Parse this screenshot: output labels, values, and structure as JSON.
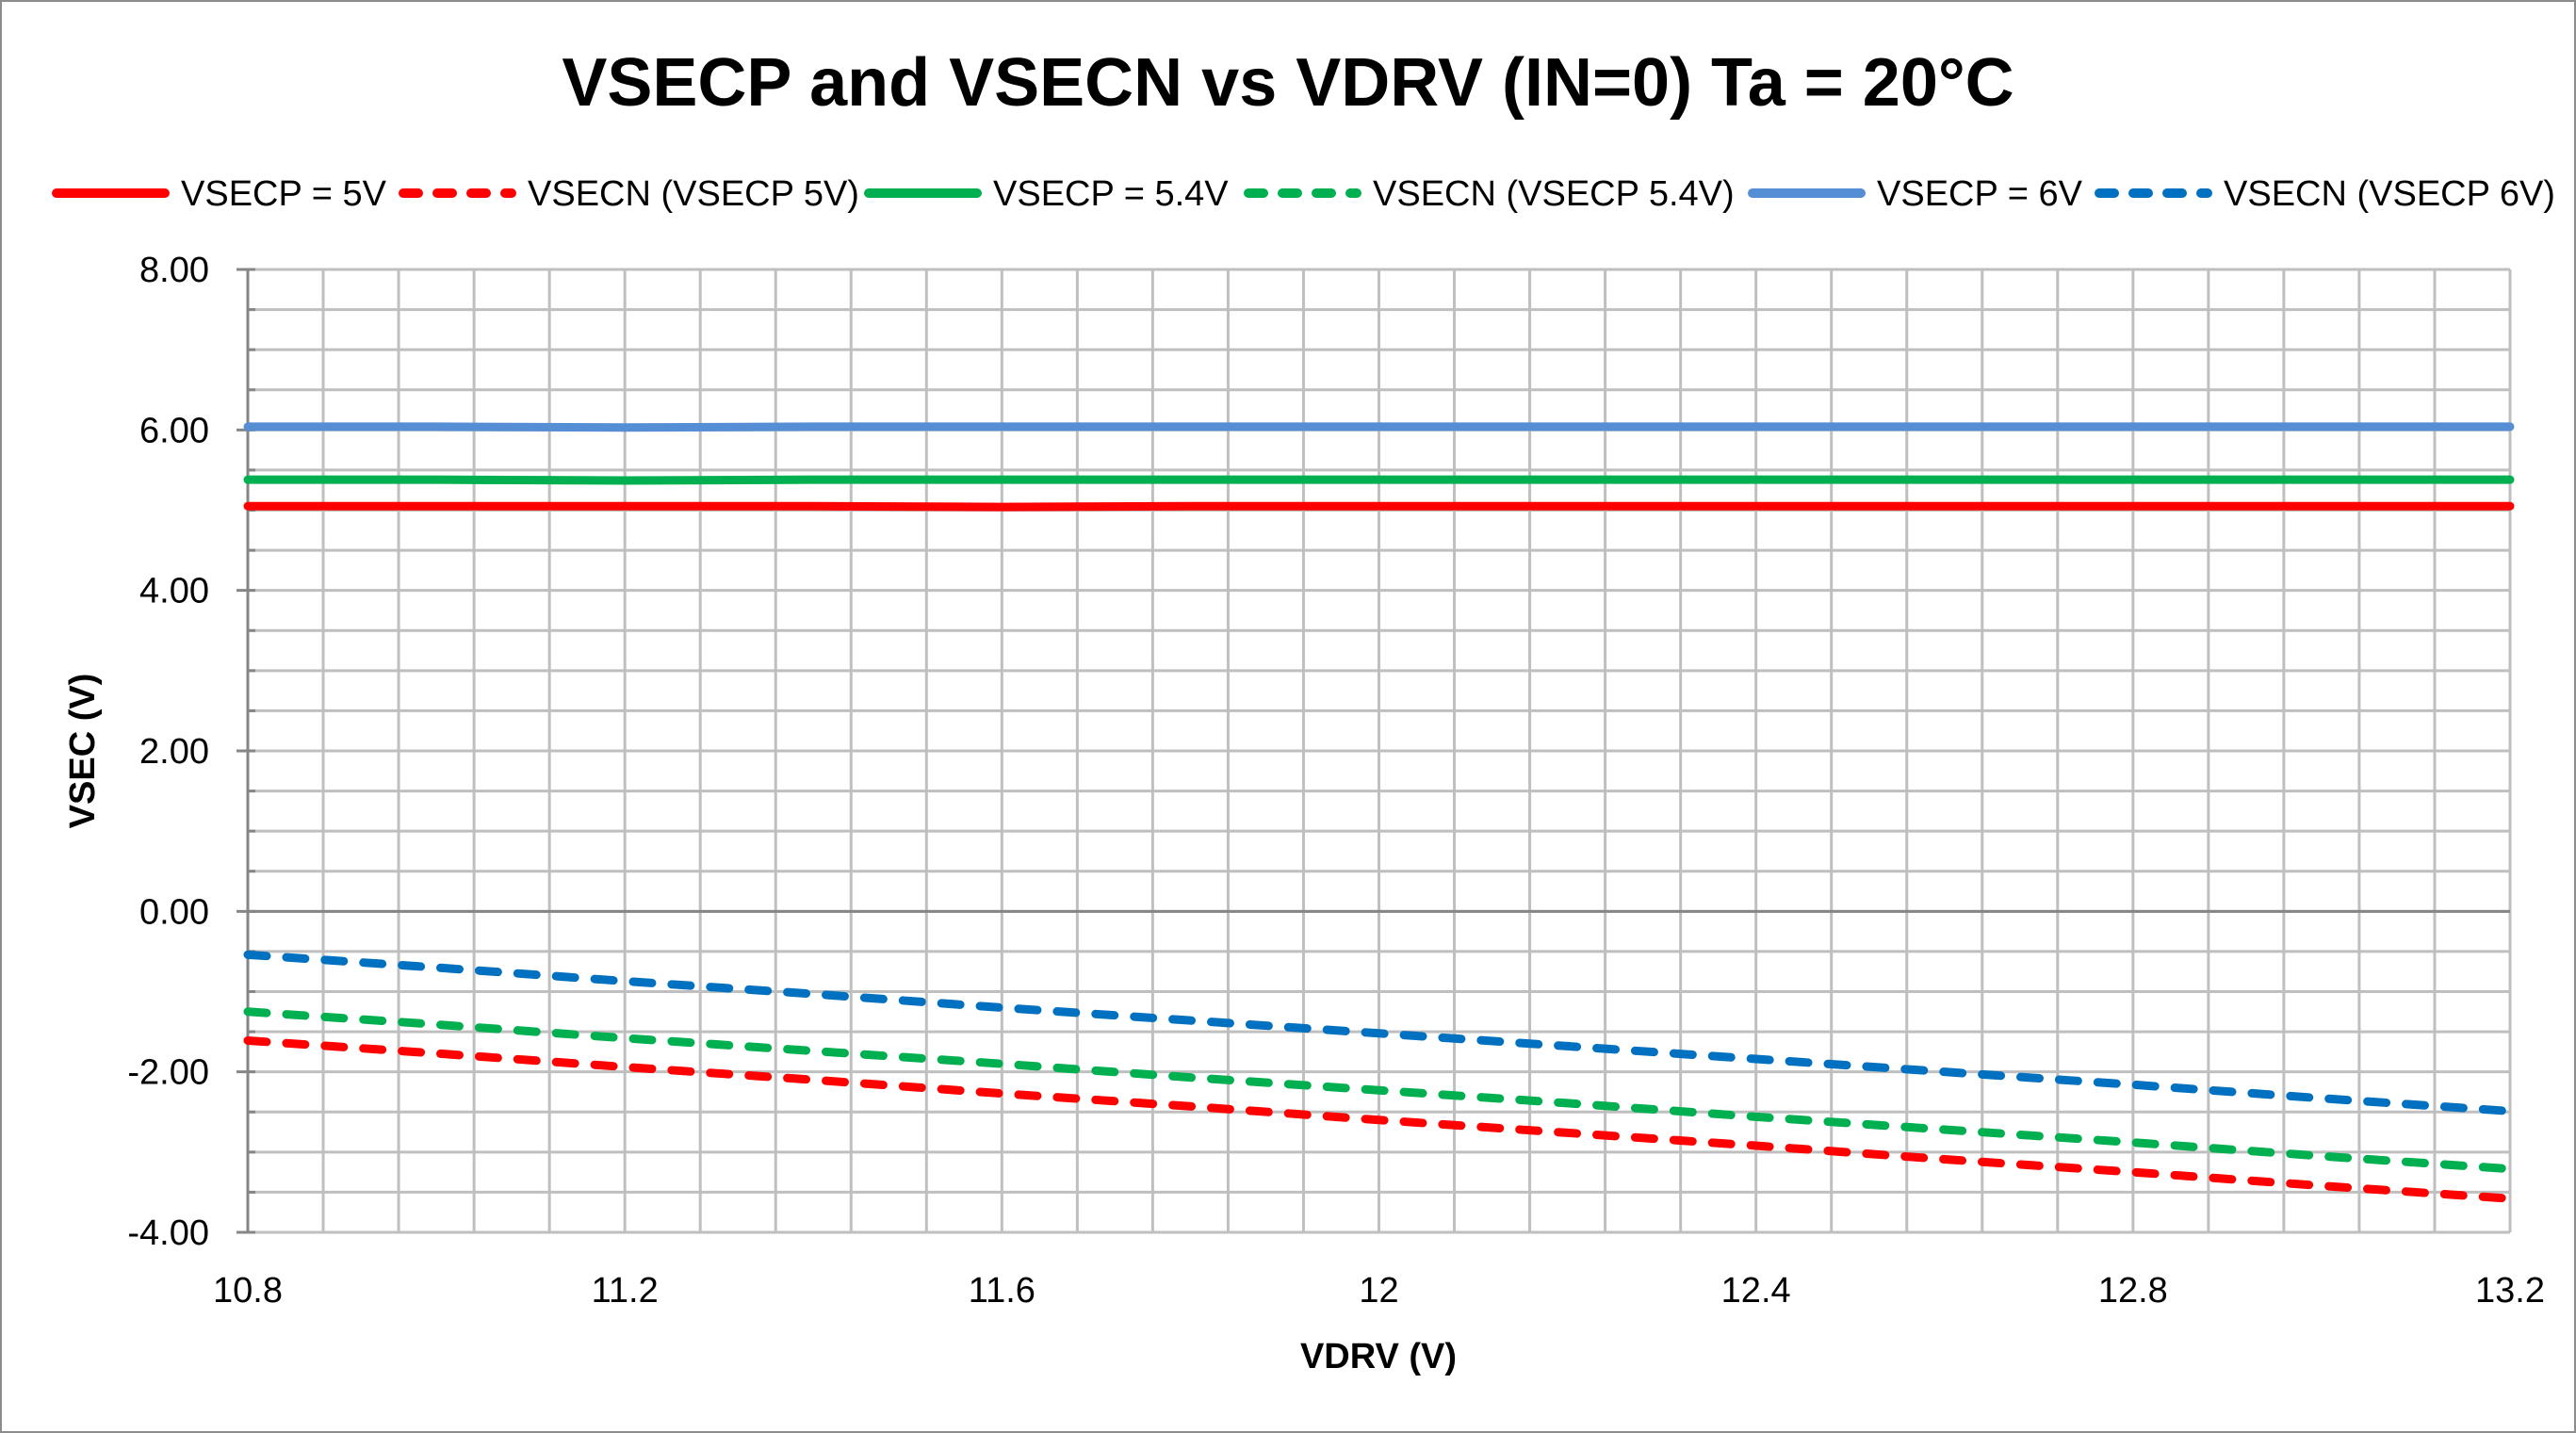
{
  "chart_data": {
    "type": "line",
    "title": "VSECP and VSECN vs VDRV (IN=0) Ta = 20°C",
    "xlabel": "VDRV (V)",
    "ylabel": "VSEC (V)",
    "xlim": [
      10.8,
      13.2
    ],
    "ylim": [
      -4,
      8
    ],
    "x_ticks": [
      "10.8",
      "11.2",
      "11.6",
      "12",
      "12.4",
      "12.8",
      "13.2"
    ],
    "y_ticks": [
      "8.00",
      "6.00",
      "4.00",
      "2.00",
      "0.00",
      "-2.00",
      "-4.00"
    ],
    "grid": true,
    "legend_position": "top",
    "x": [
      10.8,
      11.0,
      11.2,
      11.4,
      11.6,
      11.8,
      12.0,
      12.2,
      12.4,
      12.6,
      12.8,
      13.0,
      13.2
    ],
    "series": [
      {
        "name": "VSECP = 5V",
        "color": "#ff0000",
        "style": "solid",
        "values": [
          5.05,
          5.05,
          5.05,
          5.05,
          5.04,
          5.05,
          5.05,
          5.05,
          5.05,
          5.05,
          5.05,
          5.05,
          5.05
        ]
      },
      {
        "name": "VSECN (VSECP 5V)",
        "color": "#ff0000",
        "style": "dashed",
        "values": [
          -1.61,
          -1.77,
          -1.94,
          -2.1,
          -2.27,
          -2.43,
          -2.6,
          -2.76,
          -2.92,
          -3.09,
          -3.25,
          -3.42,
          -3.58
        ]
      },
      {
        "name": "VSECP = 5.4V",
        "color": "#00b050",
        "style": "solid",
        "values": [
          5.38,
          5.38,
          5.37,
          5.38,
          5.38,
          5.38,
          5.38,
          5.38,
          5.38,
          5.38,
          5.38,
          5.38,
          5.38
        ]
      },
      {
        "name": "VSECN (VSECP 5.4V)",
        "color": "#00b050",
        "style": "dashed",
        "values": [
          -1.25,
          -1.41,
          -1.58,
          -1.74,
          -1.9,
          -2.07,
          -2.23,
          -2.39,
          -2.56,
          -2.72,
          -2.88,
          -3.05,
          -3.21
        ]
      },
      {
        "name": "VSECP = 6V",
        "color": "#558ed5",
        "style": "solid",
        "values": [
          6.04,
          6.04,
          6.03,
          6.04,
          6.04,
          6.04,
          6.04,
          6.04,
          6.04,
          6.04,
          6.04,
          6.04,
          6.04
        ]
      },
      {
        "name": "VSECN (VSECP 6V)",
        "color": "#0070c0",
        "style": "dashed",
        "values": [
          -0.54,
          -0.7,
          -0.87,
          -1.03,
          -1.2,
          -1.36,
          -1.52,
          -1.68,
          -1.84,
          -2.0,
          -2.16,
          -2.33,
          -2.49
        ]
      }
    ]
  }
}
